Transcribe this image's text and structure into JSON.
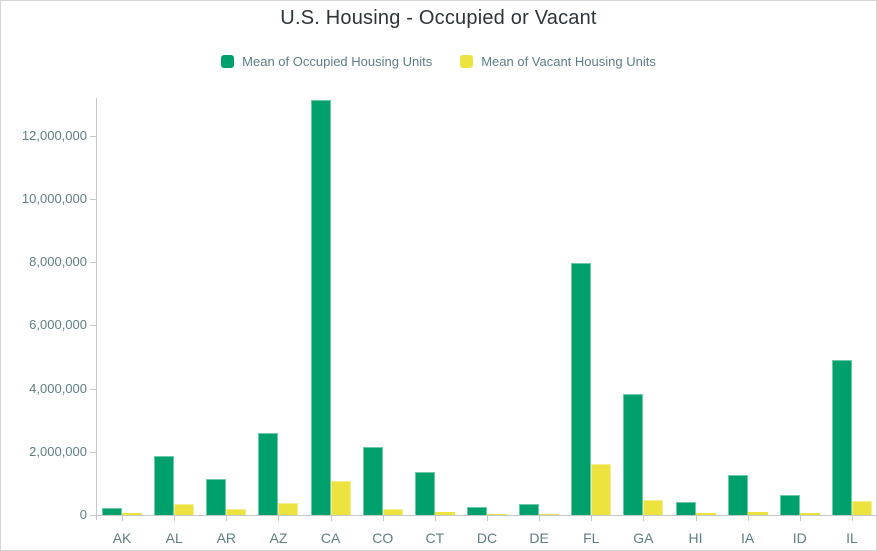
{
  "header": {
    "title": "U.S. Housing - Occupied or Vacant"
  },
  "chart_data": {
    "type": "bar",
    "title": "U.S. Housing - Occupied or Vacant",
    "xlabel": "",
    "ylabel": "",
    "categories": [
      "AK",
      "AL",
      "AR",
      "AZ",
      "CA",
      "CO",
      "CT",
      "DC",
      "DE",
      "FL",
      "GA",
      "HI",
      "IA",
      "ID",
      "IL"
    ],
    "series": [
      {
        "name": "Mean of Occupied Housing Units",
        "color": "#00a06c",
        "edge_color": "#6cc9a9",
        "values": [
          225000,
          1870000,
          1130000,
          2610000,
          13150000,
          2140000,
          1370000,
          265000,
          340000,
          7990000,
          3820000,
          425000,
          1260000,
          625000,
          4920000
        ]
      },
      {
        "name": "Mean of Vacant Housing Units",
        "color": "#ece33e",
        "edge_color": "#f4ee8e",
        "values": [
          50000,
          360000,
          180000,
          370000,
          1080000,
          200000,
          105000,
          35000,
          42000,
          1610000,
          465000,
          55000,
          105000,
          63000,
          445000
        ]
      }
    ],
    "ylim": [
      0,
      13200000
    ],
    "yticks": [
      0,
      2000000,
      4000000,
      6000000,
      8000000,
      10000000,
      12000000
    ],
    "grid": false,
    "legend_position": "top"
  },
  "colors": {
    "axis": "#c4c8ca",
    "axis_label": "#5f7d84",
    "title_text": "#2e3438",
    "background": "#ffffff",
    "border": "#d4d4d4"
  }
}
